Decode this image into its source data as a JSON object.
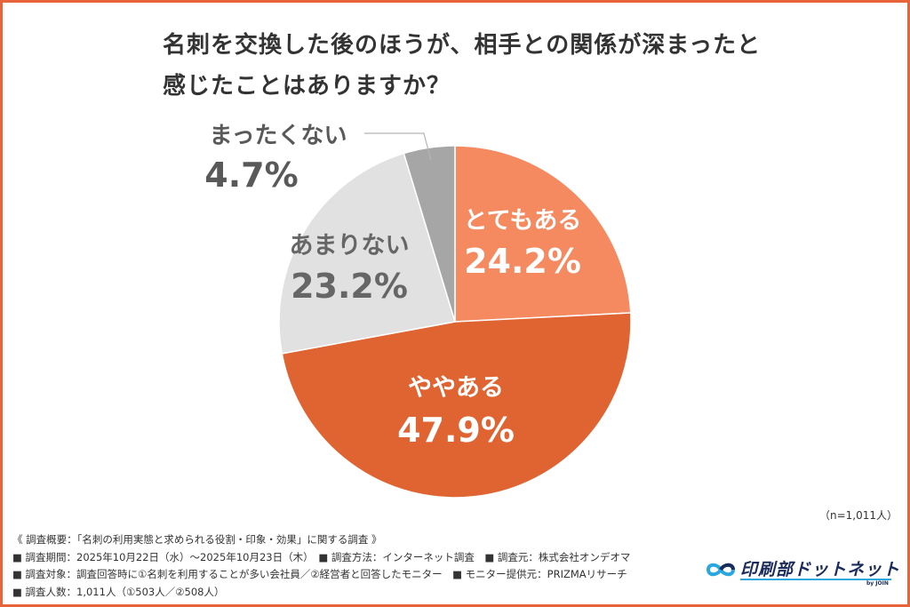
{
  "chart_data": {
    "type": "pie",
    "title_lines": [
      "名刺を交換した後のほうが、相手との関係が深まったと",
      "感じたことはありますか？"
    ],
    "slices": [
      {
        "label": "とてもある",
        "value": 24.2,
        "value_label": "24.2%",
        "color": "#f5895f",
        "text_color": "#ffffff"
      },
      {
        "label": "ややある",
        "value": 47.9,
        "value_label": "47.9%",
        "color": "#e06332",
        "text_color": "#ffffff"
      },
      {
        "label": "あまりない",
        "value": 23.2,
        "value_label": "23.2%",
        "color": "#e1e1e1",
        "text_color": "#666666"
      },
      {
        "label": "まったくない",
        "value": 4.7,
        "value_label": "4.7%",
        "color": "#a6a6a6",
        "text_color": "#595959"
      }
    ],
    "sample_note": "（n=1,011人）"
  },
  "footer": {
    "lines": [
      "《 調査概要：「名刺の利用実態と求められる役割・印象・効果」に関する調査 》",
      "■ 調査期間：2025年10月22日（水）〜2025年10月23日（木）　■ 調査方法：インターネット調査　■ 調査元：株式会社オンデオマ",
      "■ 調査対象：調査回答時に①名刺を利用することが多い会社員／②経営者と回答したモニター　■ モニター提供元：PRIZMAリサーチ",
      "■ 調査人数：1,011人（①503人／②508人）"
    ]
  },
  "logo": {
    "name": "印刷部ドットネット",
    "by": "by JOIN",
    "accent": "#2aa7e0",
    "text_color": "#1a2b5c"
  },
  "frame_color": "#e8623a"
}
